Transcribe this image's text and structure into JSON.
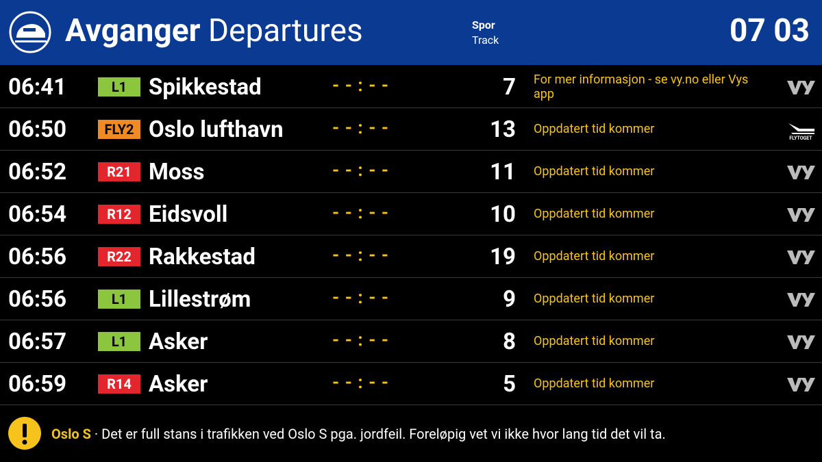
{
  "header": {
    "title_bold": "Avganger",
    "title": "Departures",
    "track_label": "Spor",
    "track_label_en": "Track",
    "clock": "07 03"
  },
  "rows": [
    {
      "time": "06:41",
      "line": "L1",
      "line_color": "#8cc63f",
      "destination": "Spikkestad",
      "expected": "- - : - -",
      "track": "7",
      "message": "For mer informasjon - se vy.no eller Vys app"
    },
    {
      "time": "06:50",
      "line": "FLY2",
      "line_color": "#f08a24",
      "destination": "Oslo lufthavn",
      "expected": "- - : - -",
      "track": "13",
      "message": "Oppdatert tid kommer",
      "logo_text": "FLYTOGET"
    },
    {
      "time": "06:52",
      "line": "R21",
      "line_color": "#e3262d",
      "destination": "Moss",
      "expected": "- - : - -",
      "track": "11",
      "message": "Oppdatert tid kommer"
    },
    {
      "time": "06:54",
      "line": "R12",
      "line_color": "#e3262d",
      "destination": "Eidsvoll",
      "expected": "- - : - -",
      "track": "10",
      "message": "Oppdatert tid kommer"
    },
    {
      "time": "06:56",
      "line": "R22",
      "line_color": "#e3262d",
      "destination": "Rakkestad",
      "expected": "- - : - -",
      "track": "19",
      "message": "Oppdatert tid kommer"
    },
    {
      "time": "06:56",
      "line": "L1",
      "line_color": "#8cc63f",
      "destination": "Lillestrøm",
      "expected": "- - : - -",
      "track": "9",
      "message": "Oppdatert tid kommer"
    },
    {
      "time": "06:57",
      "line": "L1",
      "line_color": "#8cc63f",
      "destination": "Asker",
      "expected": "- - : - -",
      "track": "8",
      "message": "Oppdatert tid kommer"
    },
    {
      "time": "06:59",
      "line": "R14",
      "line_color": "#e3262d",
      "destination": "Asker",
      "expected": "- - : - -",
      "track": "5",
      "message": "Oppdatert tid kommer"
    }
  ],
  "alert": {
    "location": "Oslo S",
    "separator": "·",
    "message": "Det er full stans i trafikken ved Oslo S pga. jordfeil. Foreløpig vet vi ikke hvor lang tid det vil ta."
  }
}
